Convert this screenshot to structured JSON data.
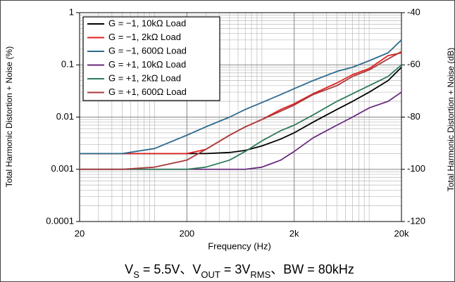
{
  "chart_data": {
    "type": "line",
    "title_parts": [
      {
        "text": "V"
      },
      {
        "text": "S",
        "sub": true
      },
      {
        "text": " = 5.5V、V"
      },
      {
        "text": "OUT",
        "sub": true
      },
      {
        "text": " = 3V"
      },
      {
        "text": "RMS",
        "sub": true
      },
      {
        "text": "、BW = 80kHz"
      }
    ],
    "xlabel": "Frequency (Hz)",
    "ylabel": "Total Harmonic Distortion + Noise (%)",
    "y2label": "Total Harmonic Distortion + Noise (dB)",
    "log_x": true,
    "log_y": true,
    "grid": true,
    "legend": "upper left",
    "xlim": [
      20,
      20000
    ],
    "xticks": [
      20,
      200,
      {
        "value": 2000,
        "label": "2k"
      },
      {
        "value": 20000,
        "label": "20k"
      }
    ],
    "ylim": [
      0.0001,
      1
    ],
    "yticks": [
      0.0001,
      0.001,
      0.01,
      0.1,
      1
    ],
    "y2lim": [
      -120,
      -40
    ],
    "y2ticks": [
      -120,
      -100,
      -80,
      -60,
      -40
    ],
    "x": [
      20,
      50,
      100,
      200,
      300,
      500,
      700,
      1000,
      1500,
      2000,
      3000,
      5000,
      7000,
      10000,
      15000,
      20000
    ],
    "series": [
      {
        "name": "G = −1, 10kΩ Load",
        "color": "#000000",
        "values": [
          0.002,
          0.002,
          0.002,
          0.002,
          0.002,
          0.0021,
          0.0023,
          0.0028,
          0.0038,
          0.005,
          0.008,
          0.014,
          0.02,
          0.03,
          0.05,
          0.09
        ]
      },
      {
        "name": "G = −1, 2kΩ Load",
        "color": "#e02020",
        "values": [
          0.002,
          0.002,
          0.002,
          0.002,
          0.0024,
          0.0045,
          0.0065,
          0.009,
          0.014,
          0.018,
          0.028,
          0.045,
          0.065,
          0.085,
          0.15,
          0.17
        ]
      },
      {
        "name": "G = −1, 600Ω Load",
        "color": "#2e6a8e",
        "values": [
          0.002,
          0.002,
          0.0025,
          0.0045,
          0.0065,
          0.01,
          0.014,
          0.019,
          0.027,
          0.035,
          0.05,
          0.075,
          0.09,
          0.12,
          0.17,
          0.3
        ]
      },
      {
        "name": "G = +1, 10kΩ Load",
        "color": "#6a2a7e",
        "values": [
          0.001,
          0.001,
          0.001,
          0.001,
          0.001,
          0.001,
          0.001,
          0.0011,
          0.0015,
          0.0022,
          0.004,
          0.007,
          0.01,
          0.015,
          0.02,
          0.03
        ]
      },
      {
        "name": "G = +1, 2kΩ Load",
        "color": "#2e7a58",
        "values": [
          0.001,
          0.001,
          0.001,
          0.001,
          0.0011,
          0.0015,
          0.0022,
          0.0035,
          0.0055,
          0.007,
          0.011,
          0.02,
          0.028,
          0.04,
          0.06,
          0.1
        ]
      },
      {
        "name": "G = +1, 600Ω Load",
        "color": "#a83a3a",
        "values": [
          0.001,
          0.001,
          0.0011,
          0.0015,
          0.0024,
          0.0045,
          0.0065,
          0.009,
          0.013,
          0.017,
          0.027,
          0.04,
          0.06,
          0.08,
          0.13,
          0.18
        ]
      }
    ]
  }
}
